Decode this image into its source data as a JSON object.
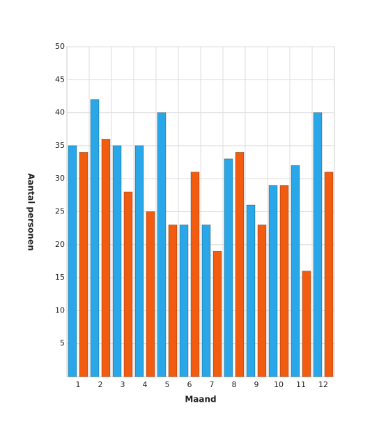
{
  "chart_data": {
    "type": "bar",
    "x_label": "Maand",
    "y_label": "Aantal personen",
    "categories": [
      "1",
      "2",
      "3",
      "4",
      "5",
      "6",
      "7",
      "8",
      "9",
      "10",
      "11",
      "12"
    ],
    "series": [
      {
        "color": "#2aa7e8",
        "values": [
          35,
          42,
          35,
          35,
          40,
          23,
          23,
          33,
          26,
          29,
          32,
          40
        ]
      },
      {
        "color": "#f25c10",
        "values": [
          34,
          36,
          28,
          25,
          23,
          31,
          19,
          34,
          23,
          29,
          16,
          31
        ]
      }
    ],
    "ylim": [
      0,
      50
    ],
    "yticks": [
      5,
      10,
      15,
      20,
      25,
      30,
      35,
      40,
      45,
      50
    ],
    "grid": true
  }
}
